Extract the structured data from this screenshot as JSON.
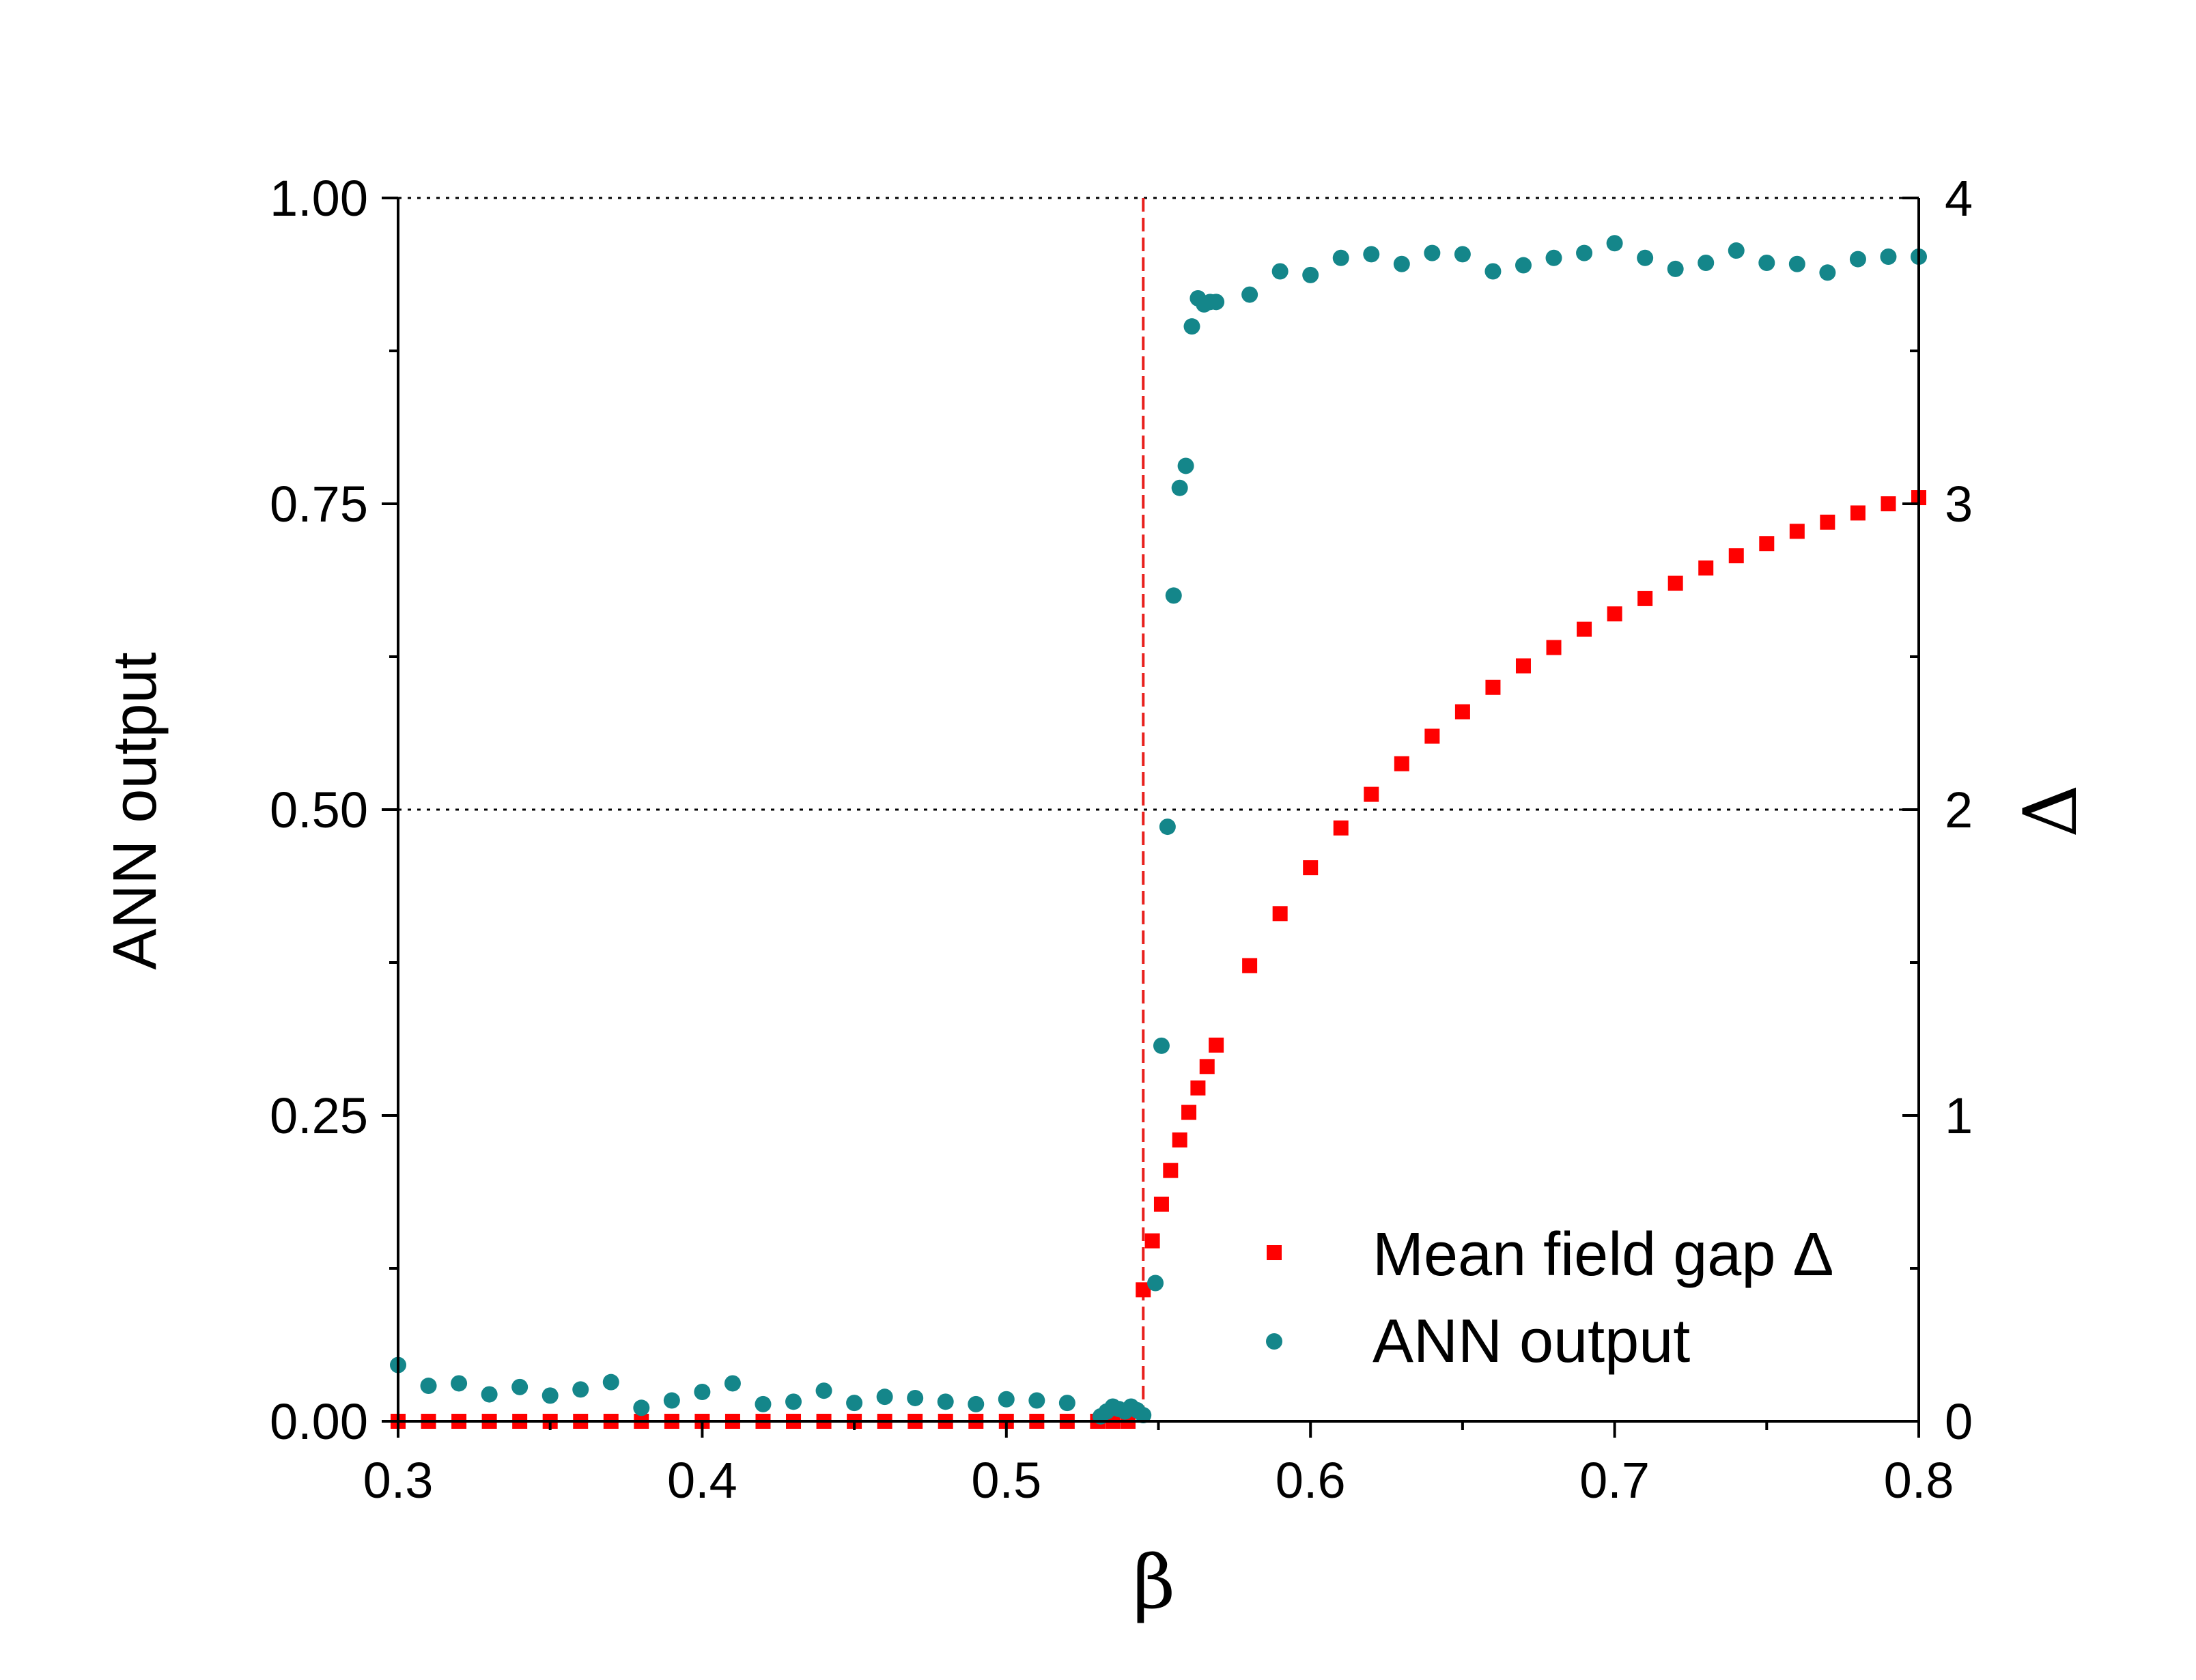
{
  "chart_data": {
    "type": "scatter",
    "xlabel": "β",
    "ylabel_left": "ANN output",
    "ylabel_right": "Δ",
    "xlim": [
      0.3,
      0.8
    ],
    "ylim_left": [
      0,
      1
    ],
    "ylim_right": [
      0,
      4
    ],
    "x_ticks": [
      "0.3",
      "0.4",
      "0.5",
      "0.6",
      "0.7",
      "0.8"
    ],
    "y_left_ticks": [
      "0.00",
      "0.25",
      "0.50",
      "0.75",
      "1.00"
    ],
    "y_right_ticks": [
      "0",
      "1",
      "2",
      "3",
      "4"
    ],
    "reference_lines": {
      "horizontal_dotted_left_values": [
        0.5,
        1.0
      ],
      "vertical_dashed_x": 0.545,
      "vertical_dashed_color": "#e8201d"
    },
    "legend_position": "bottom-right",
    "series": [
      {
        "name": "Mean field gap Δ",
        "axis": "right",
        "marker": "square",
        "color": "#ff0000",
        "x": [
          0.3,
          0.31,
          0.32,
          0.33,
          0.34,
          0.35,
          0.36,
          0.37,
          0.38,
          0.39,
          0.4,
          0.41,
          0.42,
          0.43,
          0.44,
          0.45,
          0.46,
          0.47,
          0.48,
          0.49,
          0.5,
          0.51,
          0.52,
          0.53,
          0.535,
          0.54,
          0.545,
          0.548,
          0.551,
          0.554,
          0.557,
          0.56,
          0.563,
          0.566,
          0.569,
          0.58,
          0.59,
          0.6,
          0.61,
          0.62,
          0.63,
          0.64,
          0.65,
          0.66,
          0.67,
          0.68,
          0.69,
          0.7,
          0.71,
          0.72,
          0.73,
          0.74,
          0.75,
          0.76,
          0.77,
          0.78,
          0.79,
          0.8
        ],
        "y": [
          0,
          0,
          0,
          0,
          0,
          0,
          0,
          0,
          0,
          0,
          0,
          0,
          0,
          0,
          0,
          0,
          0,
          0,
          0,
          0,
          0,
          0,
          0,
          0,
          0,
          0,
          0.43,
          0.59,
          0.71,
          0.82,
          0.92,
          1.01,
          1.09,
          1.16,
          1.23,
          1.49,
          1.66,
          1.81,
          1.94,
          2.05,
          2.15,
          2.24,
          2.32,
          2.4,
          2.47,
          2.53,
          2.59,
          2.64,
          2.69,
          2.74,
          2.79,
          2.83,
          2.87,
          2.91,
          2.94,
          2.97,
          3.0,
          3.02
        ]
      },
      {
        "name": "ANN output",
        "axis": "left",
        "marker": "circle",
        "color": "#14868a",
        "x": [
          0.3,
          0.31,
          0.32,
          0.33,
          0.34,
          0.35,
          0.36,
          0.37,
          0.38,
          0.39,
          0.4,
          0.41,
          0.42,
          0.43,
          0.44,
          0.45,
          0.46,
          0.47,
          0.48,
          0.49,
          0.5,
          0.51,
          0.52,
          0.531,
          0.533,
          0.535,
          0.537,
          0.539,
          0.541,
          0.543,
          0.545,
          0.549,
          0.551,
          0.553,
          0.555,
          0.557,
          0.559,
          0.561,
          0.563,
          0.565,
          0.567,
          0.569,
          0.58,
          0.59,
          0.6,
          0.61,
          0.62,
          0.63,
          0.64,
          0.65,
          0.66,
          0.67,
          0.68,
          0.69,
          0.7,
          0.71,
          0.72,
          0.73,
          0.74,
          0.75,
          0.76,
          0.77,
          0.78,
          0.79,
          0.8
        ],
        "y": [
          0.046,
          0.029,
          0.031,
          0.022,
          0.028,
          0.021,
          0.026,
          0.032,
          0.011,
          0.017,
          0.024,
          0.031,
          0.014,
          0.016,
          0.025,
          0.015,
          0.02,
          0.019,
          0.016,
          0.014,
          0.018,
          0.017,
          0.015,
          0.004,
          0.008,
          0.012,
          0.01,
          0.008,
          0.012,
          0.009,
          0.005,
          0.113,
          0.307,
          0.486,
          0.675,
          0.763,
          0.781,
          0.895,
          0.918,
          0.913,
          0.915,
          0.915,
          0.921,
          0.94,
          0.937,
          0.951,
          0.954,
          0.946,
          0.955,
          0.954,
          0.94,
          0.945,
          0.951,
          0.955,
          0.963,
          0.951,
          0.942,
          0.947,
          0.957,
          0.947,
          0.946,
          0.939,
          0.95,
          0.952,
          0.952
        ]
      }
    ]
  }
}
